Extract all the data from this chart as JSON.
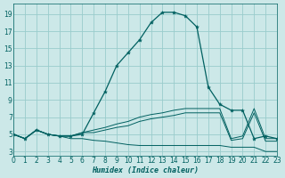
{
  "xlabel": "Humidex (Indice chaleur)",
  "background_color": "#cce8e8",
  "grid_color": "#99cccc",
  "line_color": "#006060",
  "x_ticks": [
    0,
    1,
    2,
    3,
    4,
    5,
    6,
    7,
    8,
    9,
    10,
    11,
    12,
    13,
    14,
    15,
    16,
    17,
    18,
    19,
    20,
    21,
    22,
    23
  ],
  "y_ticks": [
    3,
    5,
    7,
    9,
    11,
    13,
    15,
    17,
    19
  ],
  "xlim": [
    0,
    23
  ],
  "ylim": [
    2.5,
    20.2
  ],
  "curve_main": [
    5.0,
    4.5,
    5.5,
    5.0,
    4.8,
    4.8,
    5.0,
    7.5,
    10.0,
    13.0,
    14.5,
    16.0,
    18.0,
    19.2,
    19.2,
    18.8,
    17.5,
    10.5,
    8.5,
    7.8,
    7.8,
    4.5,
    4.8,
    4.5
  ],
  "curve_upper": [
    5.0,
    4.5,
    5.5,
    5.0,
    4.8,
    4.8,
    5.2,
    5.5,
    5.8,
    6.2,
    6.5,
    7.0,
    7.3,
    7.5,
    7.8,
    8.0,
    8.0,
    8.0,
    8.0,
    4.5,
    4.8,
    8.0,
    4.5,
    4.5
  ],
  "curve_mid": [
    5.0,
    4.5,
    5.5,
    5.0,
    4.8,
    4.8,
    5.2,
    5.2,
    5.5,
    5.8,
    6.0,
    6.5,
    6.8,
    7.0,
    7.2,
    7.5,
    7.5,
    7.5,
    7.5,
    4.3,
    4.5,
    7.5,
    4.2,
    4.2
  ],
  "curve_lower": [
    5.0,
    4.5,
    5.5,
    5.0,
    4.8,
    4.5,
    4.5,
    4.3,
    4.2,
    4.0,
    3.8,
    3.7,
    3.7,
    3.7,
    3.7,
    3.7,
    3.7,
    3.7,
    3.7,
    3.5,
    3.5,
    3.5,
    3.0,
    3.0
  ],
  "tick_fontsize": 5.5,
  "xlabel_fontsize": 6.0
}
